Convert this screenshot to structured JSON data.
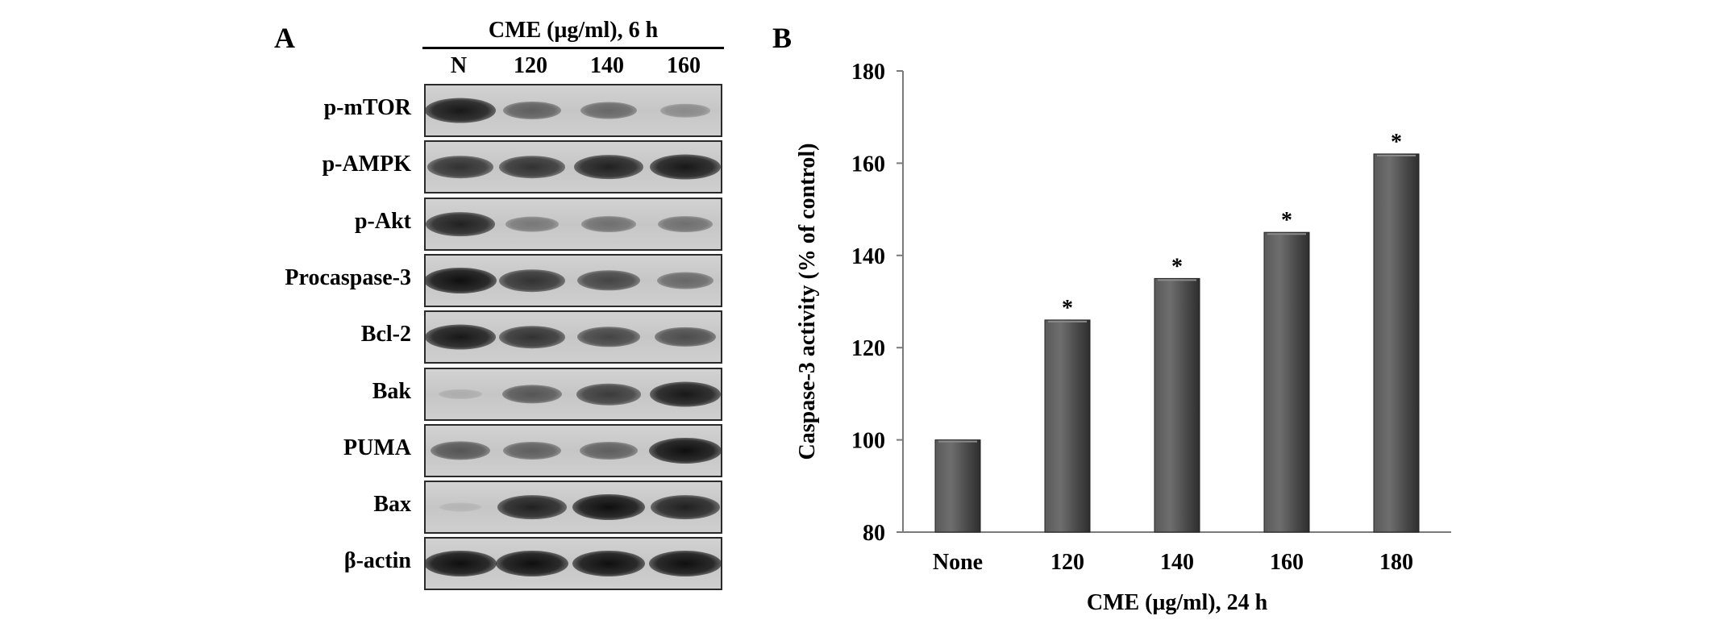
{
  "panel_a": {
    "letter": "A",
    "header": "CME (μg/ml), 6 h",
    "lanes": [
      "N",
      "120",
      "140",
      "160"
    ],
    "rows": [
      {
        "label": "p-mTOR",
        "intensity": [
          0.95,
          0.55,
          0.5,
          0.3
        ]
      },
      {
        "label": "p-AMPK",
        "intensity": [
          0.8,
          0.8,
          0.9,
          0.95
        ]
      },
      {
        "label": "p-Akt",
        "intensity": [
          0.9,
          0.4,
          0.45,
          0.45
        ]
      },
      {
        "label": "Procaspase-3",
        "intensity": [
          1.0,
          0.8,
          0.7,
          0.5
        ]
      },
      {
        "label": "Bcl-2",
        "intensity": [
          0.95,
          0.8,
          0.7,
          0.65
        ]
      },
      {
        "label": "Bak",
        "intensity": [
          0.1,
          0.6,
          0.75,
          0.95
        ]
      },
      {
        "label": "PUMA",
        "intensity": [
          0.6,
          0.55,
          0.55,
          1.0
        ]
      },
      {
        "label": "Bax",
        "intensity": [
          0.05,
          0.9,
          1.0,
          0.9
        ]
      },
      {
        "label": "β-actin",
        "intensity": [
          1.0,
          1.0,
          1.0,
          1.0
        ]
      }
    ]
  },
  "panel_b": {
    "letter": "B",
    "chart_data": {
      "type": "bar",
      "categories": [
        "None",
        "120",
        "140",
        "160",
        "180"
      ],
      "values": [
        100,
        126,
        135,
        145,
        162
      ],
      "significance": [
        "",
        "*",
        "*",
        "*",
        "*"
      ],
      "xlabel": "CME (μg/ml), 24 h",
      "ylabel": "Caspase-3 activity  (% of control)",
      "ylim": [
        80,
        180
      ],
      "yticks": [
        "80",
        "100",
        "120",
        "140",
        "160",
        "180"
      ],
      "grid": false,
      "legend": "none"
    },
    "colors": {
      "bar": "#4a4a4a",
      "bar_highlight": "#7a7a7a"
    }
  }
}
